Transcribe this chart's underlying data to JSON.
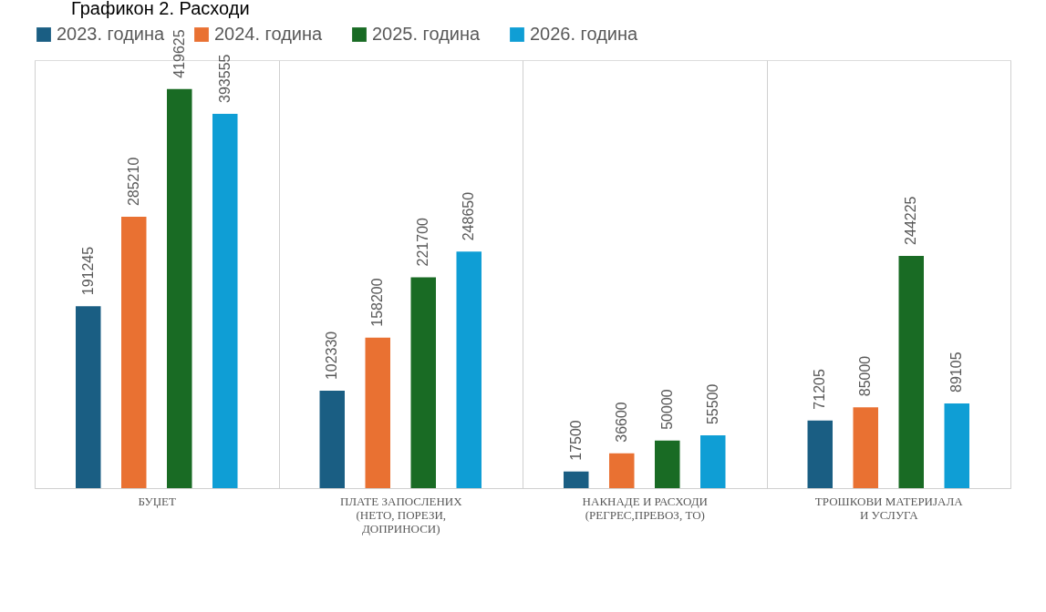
{
  "chart_data": {
    "type": "bar",
    "title": "Графикон 2. Расходи",
    "categories": [
      "БУЏЕТ",
      "ПЛАТЕ ЗАПОСЛЕНИХ (НЕТО, ПОРЕЗИ, ДОПРИНОСИ)",
      "НАКНАДЕ И РАСХОДИ (РЕГРЕС,ПРЕВОЗ, ТО)",
      "ТРОШКОВИ МАТЕРИЈАЛА И УСЛУГА"
    ],
    "series": [
      {
        "name": "2023. година",
        "color": "#1a5e83",
        "values": [
          191245,
          102330,
          17500,
          71205
        ]
      },
      {
        "name": "2024. година",
        "color": "#e97132",
        "values": [
          285210,
          158200,
          36600,
          85000
        ]
      },
      {
        "name": "2025. година",
        "color": "#196b24",
        "values": [
          419625,
          221700,
          50000,
          244225
        ]
      },
      {
        "name": "2026. година",
        "color": "#0f9ed5",
        "values": [
          393555,
          248650,
          55500,
          89105
        ]
      }
    ],
    "data_labels": true,
    "legend": "top",
    "grid": "x"
  }
}
